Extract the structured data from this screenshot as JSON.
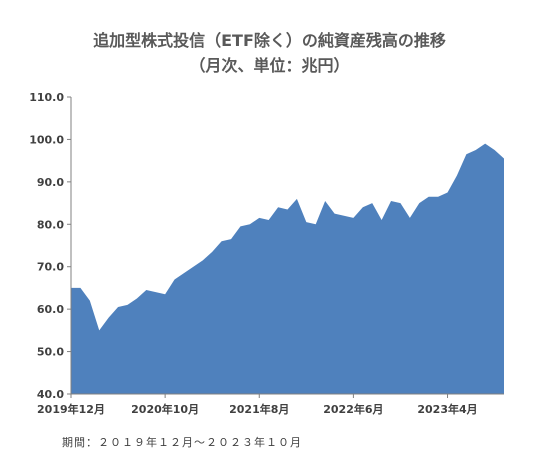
{
  "chart_data": {
    "type": "area",
    "title": "追加型株式投信（ETF除く）の純資産残高の推移",
    "subtitle": "（月次、単位：兆円）",
    "xlabel": "",
    "ylabel": "",
    "ylim": [
      40,
      110
    ],
    "y_ticks": [
      "40.0",
      "50.0",
      "60.0",
      "70.0",
      "80.0",
      "90.0",
      "100.0",
      "110.0"
    ],
    "x_tick_labels": [
      {
        "index": 0,
        "label": "2019年12月"
      },
      {
        "index": 10,
        "label": "2020年10月"
      },
      {
        "index": 20,
        "label": "2021年8月"
      },
      {
        "index": 30,
        "label": "2022年6月"
      },
      {
        "index": 40,
        "label": "2023年4月"
      }
    ],
    "grid": false,
    "legend": "none",
    "fill_color": "#4f81bd",
    "series": [
      {
        "values": [
          65.0,
          65.0,
          62.0,
          55.0,
          58.0,
          60.5,
          61.0,
          62.5,
          64.5,
          64.0,
          63.5,
          67.0,
          68.5,
          70.0,
          71.5,
          73.5,
          76.0,
          76.5,
          79.5,
          80.0,
          81.5,
          81.0,
          84.0,
          83.5,
          86.0,
          80.5,
          80.0,
          85.5,
          82.5,
          82.0,
          81.5,
          84.0,
          85.0,
          81.0,
          85.5,
          85.0,
          81.5,
          85.0,
          86.5,
          86.5,
          87.5,
          91.5,
          96.5,
          97.5,
          99.0,
          97.5,
          95.5
        ]
      }
    ]
  },
  "footnote": "期間：２０１９年１２月～２０２３年１０月"
}
